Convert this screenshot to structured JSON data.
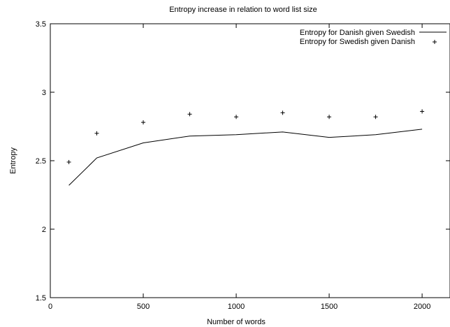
{
  "chart_data": {
    "type": "line",
    "title": "Entropy increase in relation to word list size",
    "xlabel": "Number of words",
    "ylabel": "Entropy",
    "xlim": [
      0,
      2150
    ],
    "ylim": [
      1.5,
      3.5
    ],
    "x_ticks": [
      0,
      500,
      1000,
      1500,
      2000
    ],
    "y_ticks": [
      1.5,
      2,
      2.5,
      3,
      3.5
    ],
    "x_tick_labels": [
      "0",
      "500",
      "1000",
      "1500",
      "2000"
    ],
    "y_tick_labels": [
      "1.5",
      "2",
      "2.5",
      "3",
      "3.5"
    ],
    "grid": false,
    "legend_position": "top-right",
    "series": [
      {
        "name": "Entropy for Danish given Swedish",
        "style": "line",
        "color": "#000000",
        "x": [
          100,
          250,
          500,
          750,
          1000,
          1250,
          1500,
          1750,
          2000
        ],
        "y": [
          2.32,
          2.52,
          2.63,
          2.68,
          2.69,
          2.71,
          2.67,
          2.69,
          2.73
        ]
      },
      {
        "name": "Entropy for Swedish given Danish",
        "style": "points",
        "marker": "+",
        "color": "#000000",
        "x": [
          100,
          250,
          500,
          750,
          1000,
          1250,
          1500,
          1750,
          2000
        ],
        "y": [
          2.49,
          2.7,
          2.78,
          2.84,
          2.82,
          2.85,
          2.82,
          2.82,
          2.86
        ]
      }
    ]
  }
}
